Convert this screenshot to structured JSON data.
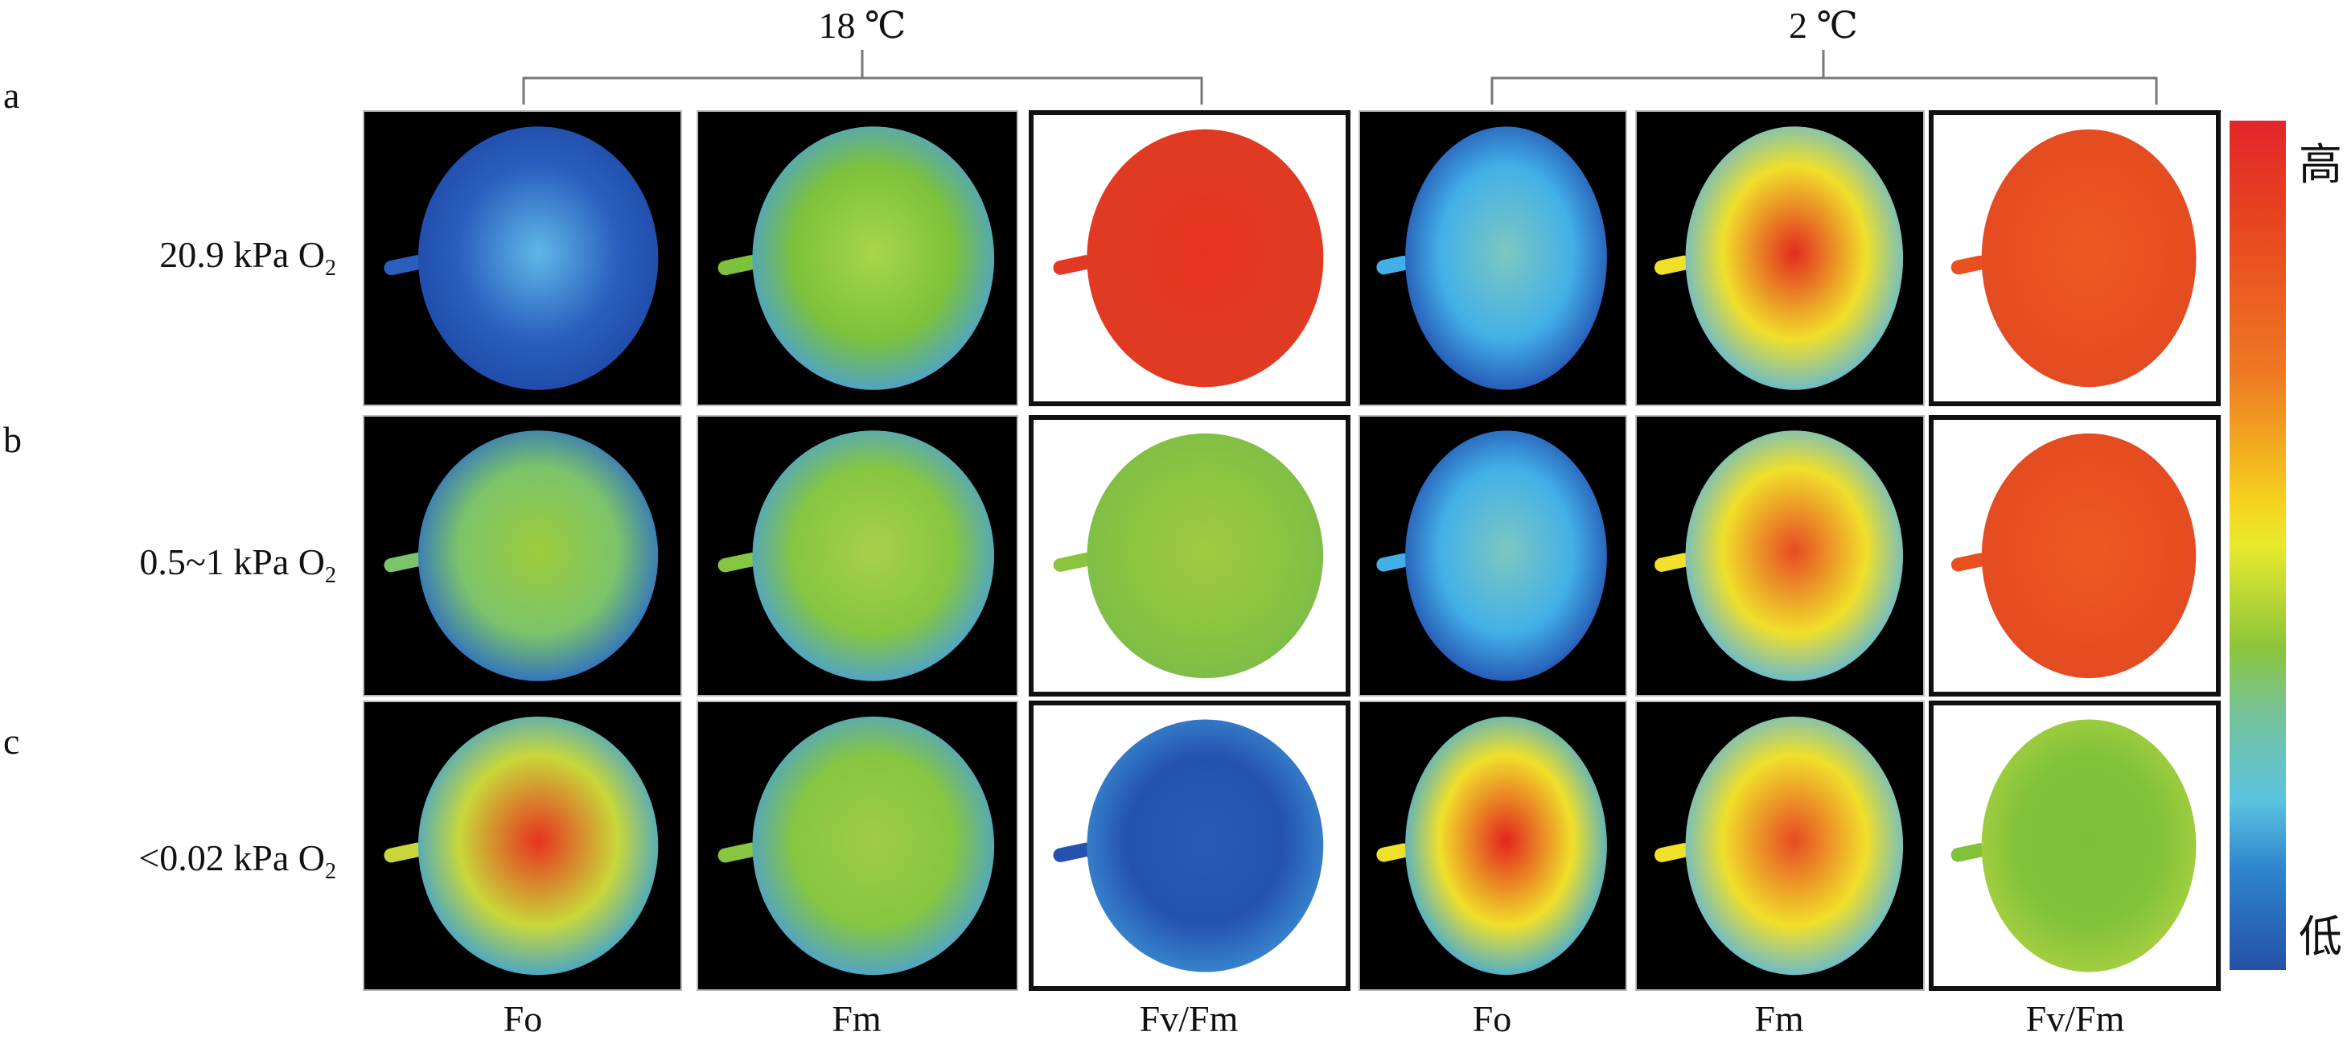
{
  "temperatures": [
    "18 ℃",
    "2 ℃"
  ],
  "rows": [
    {
      "letter": "a",
      "label": "20.9 kPa O",
      "sub": "2"
    },
    {
      "letter": "b",
      "label": "0.5~1 kPa O",
      "sub": "2"
    },
    {
      "letter": "c",
      "label": "<0.02 kPa O",
      "sub": "2"
    }
  ],
  "columns": [
    "Fo",
    "Fm",
    "Fv/Fm",
    "Fo",
    "Fm",
    "Fv/Fm"
  ],
  "colorbar": {
    "high": "高",
    "low": "低"
  },
  "panel_colors": [
    [
      [
        "#5fb8e8",
        "#2a5fbf",
        "#1f4aa8"
      ],
      [
        "#a8d64a",
        "#7cc23a",
        "#4aa0d8"
      ],
      [
        "#e8321f",
        "#e23a22",
        "#e03a22"
      ],
      [
        "#7cc8c0",
        "#42b0e8",
        "#2350b0"
      ],
      [
        "#e32a20",
        "#f0e02a",
        "#5ab6e0"
      ],
      [
        "#ec5a22",
        "#e8501f",
        "#e24a22"
      ]
    ],
    [
      [
        "#9ccc3a",
        "#7cc46a",
        "#2a6ac8"
      ],
      [
        "#a8d04a",
        "#86c640",
        "#4aa0d8"
      ],
      [
        "#a0ca40",
        "#8cc440",
        "#7cbc48"
      ],
      [
        "#7cc8c0",
        "#42b0e8",
        "#2350b0"
      ],
      [
        "#e84a24",
        "#f0e02a",
        "#5ab6e0"
      ],
      [
        "#ec5a22",
        "#e8501f",
        "#e24a22"
      ]
    ],
    [
      [
        "#e8321f",
        "#c8d83a",
        "#3aa0d8"
      ],
      [
        "#a0cc48",
        "#86c640",
        "#4aa0d8"
      ],
      [
        "#2a5ab8",
        "#2452b0",
        "#3a8ad0"
      ],
      [
        "#e3241e",
        "#f0e02a",
        "#3aa8e0"
      ],
      [
        "#e84a24",
        "#f0e02a",
        "#5ab6e0"
      ],
      [
        "#7cc03a",
        "#80c23a",
        "#a8d040"
      ]
    ]
  ]
}
